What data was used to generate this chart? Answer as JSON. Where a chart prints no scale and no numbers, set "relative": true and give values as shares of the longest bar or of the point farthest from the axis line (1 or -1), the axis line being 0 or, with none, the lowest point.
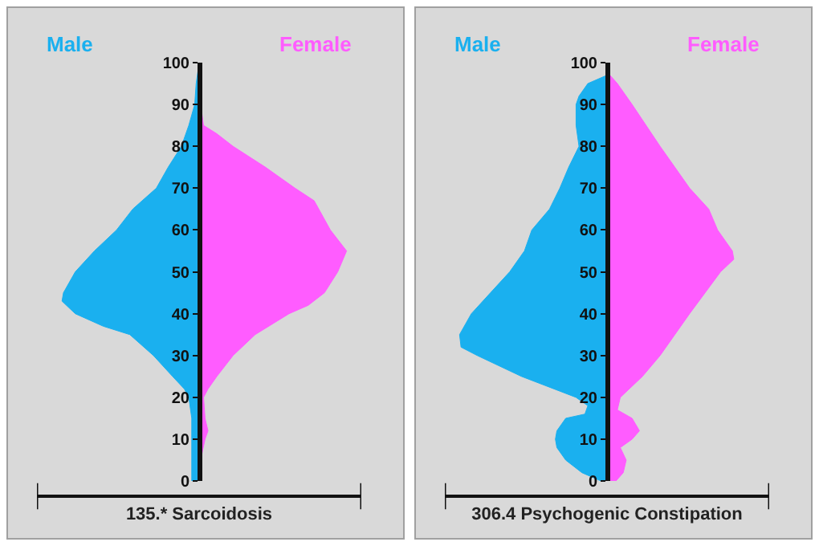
{
  "chart_data": [
    {
      "type": "area",
      "orientation": "horizontal",
      "relative": true,
      "xlabel": "135.* Sarcoidosis",
      "ylim": [
        0,
        100
      ],
      "yticks": [
        0,
        10,
        20,
        30,
        40,
        50,
        60,
        70,
        80,
        90,
        100
      ],
      "legend": false,
      "grid": false,
      "series": [
        {
          "name": "Male",
          "color": "#1ab0ef",
          "x": [
            0,
            5,
            10,
            15,
            20,
            22,
            25,
            30,
            35,
            37,
            40,
            43,
            45,
            50,
            55,
            60,
            65,
            70,
            75,
            80,
            85,
            90,
            95,
            100
          ],
          "values": [
            -0.05,
            -0.05,
            -0.05,
            -0.05,
            -0.07,
            -0.1,
            -0.18,
            -0.31,
            -0.47,
            -0.65,
            -0.84,
            -0.93,
            -0.92,
            -0.84,
            -0.71,
            -0.56,
            -0.45,
            -0.29,
            -0.21,
            -0.12,
            -0.07,
            -0.03,
            -0.02,
            0
          ]
        },
        {
          "name": "Female",
          "color": "#ff5cff",
          "x": [
            0,
            5,
            10,
            12,
            15,
            20,
            22,
            25,
            30,
            35,
            40,
            42,
            45,
            50,
            55,
            60,
            67,
            70,
            75,
            80,
            83,
            85,
            90,
            100
          ],
          "values": [
            0.01,
            0.01,
            0.04,
            0.06,
            0.04,
            0.03,
            0.06,
            0.12,
            0.23,
            0.38,
            0.61,
            0.74,
            0.85,
            0.94,
            1,
            0.89,
            0.78,
            0.65,
            0.45,
            0.23,
            0.12,
            0.03,
            0.01,
            0
          ]
        }
      ]
    },
    {
      "type": "area",
      "orientation": "horizontal",
      "relative": true,
      "xlabel": "306.4 Psychogenic Constipation",
      "ylim": [
        0,
        100
      ],
      "yticks": [
        0,
        10,
        20,
        30,
        40,
        50,
        60,
        70,
        80,
        90,
        100
      ],
      "legend": false,
      "grid": false,
      "series": [
        {
          "name": "Male",
          "color": "#1ab0ef",
          "x": [
            0,
            2,
            5,
            8,
            10,
            12,
            15,
            16,
            18,
            20,
            25,
            30,
            32,
            35,
            40,
            45,
            50,
            55,
            60,
            65,
            70,
            75,
            80,
            85,
            90,
            92,
            95,
            97
          ],
          "values": [
            -0.04,
            -0.17,
            -0.28,
            -0.34,
            -0.35,
            -0.34,
            -0.28,
            -0.15,
            -0.13,
            -0.21,
            -0.58,
            -0.88,
            -0.99,
            -1,
            -0.92,
            -0.79,
            -0.66,
            -0.56,
            -0.51,
            -0.39,
            -0.32,
            -0.26,
            -0.19,
            -0.21,
            -0.21,
            -0.19,
            -0.13,
            0
          ]
        },
        {
          "name": "Female",
          "color": "#ff5cff",
          "x": [
            0,
            2,
            5,
            8,
            10,
            12,
            15,
            17,
            20,
            25,
            30,
            40,
            50,
            53,
            55,
            60,
            65,
            70,
            80,
            90,
            95,
            97
          ],
          "values": [
            0.06,
            0.11,
            0.13,
            0.09,
            0.17,
            0.22,
            0.17,
            0.07,
            0.09,
            0.24,
            0.36,
            0.56,
            0.77,
            0.86,
            0.85,
            0.75,
            0.69,
            0.56,
            0.36,
            0.17,
            0.07,
            0.02
          ]
        }
      ]
    }
  ]
}
